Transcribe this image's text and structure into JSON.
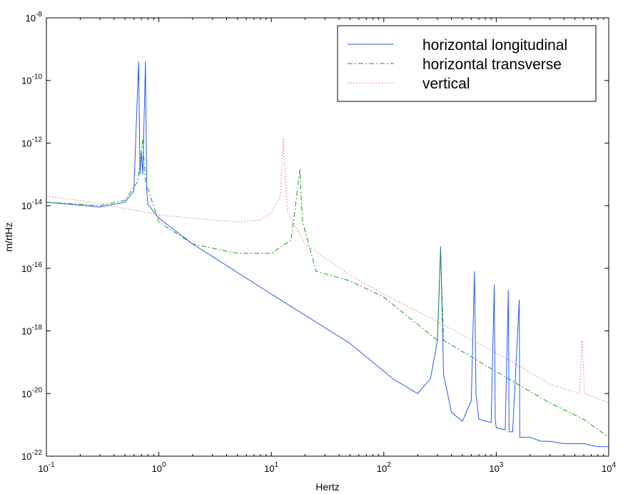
{
  "chart_data": {
    "type": "line",
    "title": "",
    "xlabel": "Hertz",
    "ylabel": "m/rtHz",
    "x_scale": "log",
    "y_scale": "log",
    "xlim": [
      0.1,
      10000
    ],
    "ylim": [
      1e-22,
      1e-08
    ],
    "grid": false,
    "legend_position": "top-right",
    "x_ticks": [
      {
        "value": 0.1,
        "base": "10",
        "exp": "-1"
      },
      {
        "value": 1,
        "base": "10",
        "exp": "0"
      },
      {
        "value": 10,
        "base": "10",
        "exp": "1"
      },
      {
        "value": 100,
        "base": "10",
        "exp": "2"
      },
      {
        "value": 1000,
        "base": "10",
        "exp": "3"
      },
      {
        "value": 10000,
        "base": "10",
        "exp": "4"
      }
    ],
    "y_ticks": [
      {
        "value": 1e-22,
        "base": "10",
        "exp": "-22"
      },
      {
        "value": 1e-20,
        "base": "10",
        "exp": "-20"
      },
      {
        "value": 1e-18,
        "base": "10",
        "exp": "-18"
      },
      {
        "value": 1e-16,
        "base": "10",
        "exp": "-16"
      },
      {
        "value": 1e-14,
        "base": "10",
        "exp": "-14"
      },
      {
        "value": 1e-12,
        "base": "10",
        "exp": "-12"
      },
      {
        "value": 1e-10,
        "base": "10",
        "exp": "-10"
      },
      {
        "value": 1e-08,
        "base": "10",
        "exp": "-8"
      }
    ],
    "series": [
      {
        "name": "horizontal longitudinal",
        "color": "#2b5ae8",
        "style": "solid",
        "x": [
          0.1,
          0.3,
          0.5,
          0.6,
          0.66,
          0.68,
          0.7,
          0.72,
          0.76,
          0.78,
          0.8,
          1.0,
          2.0,
          10,
          50,
          120,
          200,
          260,
          300,
          320,
          340,
          400,
          500,
          600,
          640,
          660,
          700,
          900,
          960,
          980,
          1000,
          1200,
          1280,
          1300,
          1400,
          1600,
          1620,
          1800,
          2000,
          2500,
          3000,
          4000,
          5000,
          6000,
          8000,
          10000
        ],
        "y": [
          1.3e-14,
          9e-15,
          1.3e-14,
          3e-14,
          4e-10,
          1e-13,
          5e-13,
          1e-13,
          4e-10,
          3e-14,
          1.1e-14,
          4e-15,
          6e-16,
          1.5e-17,
          4e-19,
          3e-20,
          1e-20,
          3e-20,
          5e-19,
          5e-16,
          4e-20,
          2.5e-21,
          1.3e-21,
          6e-21,
          8e-17,
          1e-20,
          1.5e-21,
          1.2e-21,
          3e-17,
          1.5e-21,
          8e-22,
          7e-22,
          2e-17,
          6e-22,
          6e-22,
          1e-17,
          4e-22,
          4e-22,
          4e-22,
          3e-22,
          3e-22,
          2.5e-22,
          2.5e-22,
          2.5e-22,
          2e-22,
          2e-22
        ]
      },
      {
        "name": "horizontal transverse",
        "color": "#1a9a1a",
        "style": "dashdot",
        "x": [
          0.1,
          0.3,
          0.5,
          0.65,
          0.72,
          0.76,
          1.0,
          2,
          5,
          10,
          15,
          18,
          18.5,
          19,
          25,
          50,
          100,
          300,
          320,
          340,
          1000,
          3000,
          6000,
          10000
        ],
        "y": [
          1.3e-14,
          1e-14,
          1.5e-14,
          6e-14,
          1.3e-12,
          6e-14,
          3e-15,
          6e-16,
          3e-16,
          3e-16,
          8e-16,
          1.5e-13,
          1.2e-14,
          3e-15,
          8e-17,
          4e-17,
          1.2e-17,
          5e-19,
          3.5e-16,
          5e-19,
          5e-20,
          5e-21,
          1.5e-21,
          4e-22
        ]
      },
      {
        "name": "vertical",
        "color": "#e0304a",
        "style": "dotted",
        "x": [
          0.1,
          0.3,
          0.5,
          0.8,
          1.0,
          2,
          5,
          8,
          10,
          12,
          12.8,
          13.2,
          14,
          20,
          50,
          100,
          300,
          1000,
          3000,
          5500,
          5800,
          6100,
          10000
        ],
        "y": [
          2e-14,
          1.2e-14,
          8e-15,
          6e-15,
          5e-15,
          4e-15,
          3e-15,
          3.5e-15,
          6e-15,
          2e-14,
          1.5e-12,
          1e-13,
          6e-15,
          6e-16,
          6e-17,
          1.5e-17,
          2e-18,
          2e-19,
          2e-20,
          1e-20,
          5e-19,
          1e-20,
          5e-21
        ]
      }
    ]
  }
}
